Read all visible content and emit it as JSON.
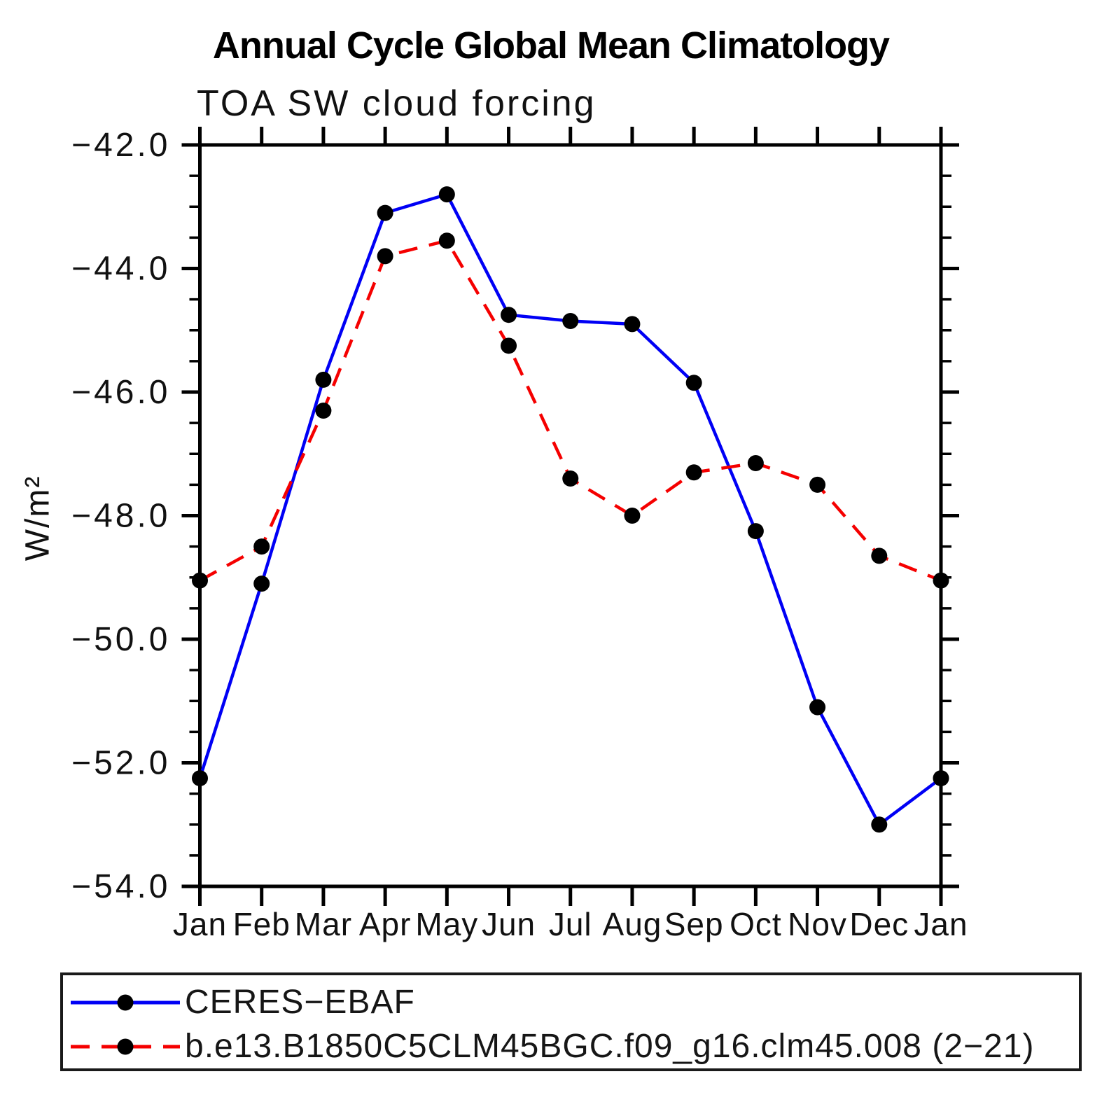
{
  "page": {
    "title": "Annual Cycle Global Mean Climatology",
    "subtitle": "TOA SW cloud forcing"
  },
  "chart_data": {
    "type": "line",
    "title": "Annual Cycle Global Mean Climatology",
    "subtitle": "TOA SW cloud forcing",
    "xlabel": "",
    "ylabel": "W/m²",
    "ylim": [
      -54.0,
      -42.0
    ],
    "ytick_labels": [
      "−42.0",
      "−44.0",
      "−46.0",
      "−48.0",
      "−50.0",
      "−52.0",
      "−54.0"
    ],
    "ytick_values": [
      -42.0,
      -44.0,
      -46.0,
      -48.0,
      -50.0,
      -52.0,
      -54.0
    ],
    "ytick_minor_step": 0.5,
    "categories": [
      "Jan",
      "Feb",
      "Mar",
      "Apr",
      "May",
      "Jun",
      "Jul",
      "Aug",
      "Sep",
      "Oct",
      "Nov",
      "Dec",
      "Jan"
    ],
    "grid": false,
    "legend_position": "bottom-left-box",
    "marker": {
      "shape": "circle",
      "color": "#000000"
    },
    "series": [
      {
        "name": "CERES−EBAF",
        "color": "#0000f5",
        "style": "solid",
        "values": [
          -52.25,
          -49.1,
          -45.8,
          -43.1,
          -42.8,
          -44.75,
          -44.85,
          -44.9,
          -45.85,
          -48.25,
          -51.1,
          -53.0,
          -52.25
        ]
      },
      {
        "name": "b.e13.B1850C5CLM45BGC.f09_g16.clm45.008 (2−21)",
        "color": "#f50000",
        "style": "dashed",
        "values": [
          -49.05,
          -48.5,
          -46.3,
          -43.8,
          -43.55,
          -45.25,
          -47.4,
          -48.0,
          -47.3,
          -47.15,
          -47.5,
          -48.65,
          -49.05
        ]
      }
    ]
  }
}
